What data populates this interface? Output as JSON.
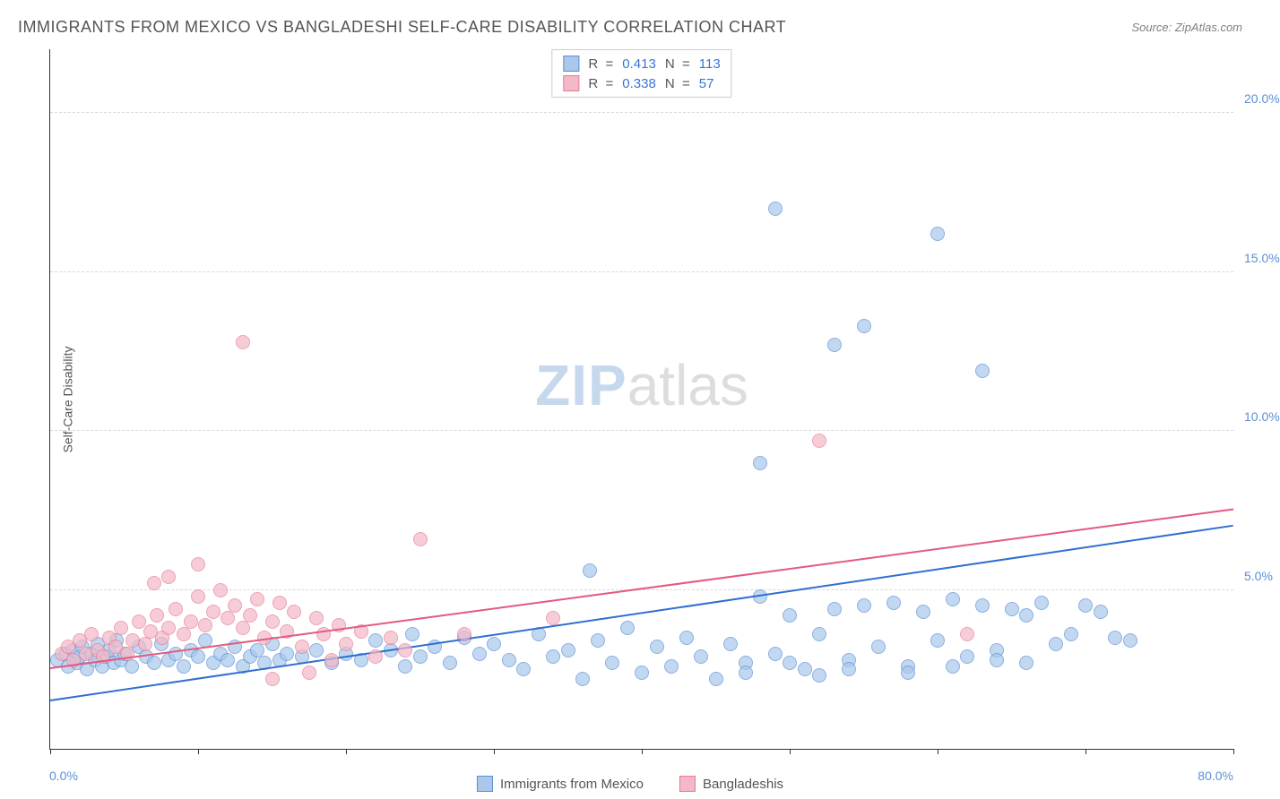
{
  "title": "IMMIGRANTS FROM MEXICO VS BANGLADESHI SELF-CARE DISABILITY CORRELATION CHART",
  "source_label": "Source: ZipAtlas.com",
  "watermark": {
    "part1": "ZIP",
    "part2": "atlas"
  },
  "ylabel": "Self-Care Disability",
  "chart": {
    "type": "scatter",
    "xlim": [
      0,
      80
    ],
    "ylim": [
      0,
      22
    ],
    "background_color": "#ffffff",
    "grid_color": "#d8d8d8",
    "axis_color": "#333333",
    "marker_radius": 8,
    "marker_border_width": 1.2,
    "xticks": [
      0,
      10,
      20,
      30,
      40,
      50,
      60,
      70,
      80
    ],
    "yticks": [
      {
        "value": 5,
        "label": "5.0%"
      },
      {
        "value": 10,
        "label": "10.0%"
      },
      {
        "value": 15,
        "label": "15.0%"
      },
      {
        "value": 20,
        "label": "20.0%"
      }
    ],
    "x_axis_labels": {
      "min": "0.0%",
      "max": "80.0%"
    },
    "y_tick_color": "#5b8fd6",
    "y_tick_fontsize": 14,
    "label_fontsize": 14,
    "label_color": "#555555"
  },
  "series": [
    {
      "name": "Immigrants from Mexico",
      "fill_color": "#a9c8ec",
      "border_color": "#5b8fd6",
      "fill_opacity": 0.7,
      "trend": {
        "x1": 0,
        "y1": 1.5,
        "x2": 80,
        "y2": 7.0,
        "color": "#2f6fd0",
        "width": 2
      },
      "stats": {
        "R": "0.413",
        "N": "113"
      },
      "points": [
        [
          0.5,
          2.8
        ],
        [
          1,
          3.0
        ],
        [
          1.2,
          2.6
        ],
        [
          1.5,
          3.1
        ],
        [
          1.8,
          2.7
        ],
        [
          2,
          2.9
        ],
        [
          2.2,
          3.2
        ],
        [
          2.5,
          2.5
        ],
        [
          2.8,
          3.0
        ],
        [
          3,
          2.8
        ],
        [
          3.2,
          3.3
        ],
        [
          3.5,
          2.6
        ],
        [
          3.8,
          2.9
        ],
        [
          4,
          3.1
        ],
        [
          4.3,
          2.7
        ],
        [
          4.5,
          3.4
        ],
        [
          4.8,
          2.8
        ],
        [
          5,
          3.0
        ],
        [
          5.5,
          2.6
        ],
        [
          6,
          3.2
        ],
        [
          6.5,
          2.9
        ],
        [
          7,
          2.7
        ],
        [
          7.5,
          3.3
        ],
        [
          8,
          2.8
        ],
        [
          8.5,
          3.0
        ],
        [
          9,
          2.6
        ],
        [
          9.5,
          3.1
        ],
        [
          10,
          2.9
        ],
        [
          10.5,
          3.4
        ],
        [
          11,
          2.7
        ],
        [
          11.5,
          3.0
        ],
        [
          12,
          2.8
        ],
        [
          12.5,
          3.2
        ],
        [
          13,
          2.6
        ],
        [
          13.5,
          2.9
        ],
        [
          14,
          3.1
        ],
        [
          14.5,
          2.7
        ],
        [
          15,
          3.3
        ],
        [
          15.5,
          2.8
        ],
        [
          16,
          3.0
        ],
        [
          17,
          2.9
        ],
        [
          18,
          3.1
        ],
        [
          19,
          2.7
        ],
        [
          20,
          3.0
        ],
        [
          21,
          2.8
        ],
        [
          22,
          3.4
        ],
        [
          23,
          3.1
        ],
        [
          24,
          2.6
        ],
        [
          24.5,
          3.6
        ],
        [
          25,
          2.9
        ],
        [
          26,
          3.2
        ],
        [
          27,
          2.7
        ],
        [
          28,
          3.5
        ],
        [
          29,
          3.0
        ],
        [
          30,
          3.3
        ],
        [
          31,
          2.8
        ],
        [
          32,
          2.5
        ],
        [
          33,
          3.6
        ],
        [
          34,
          2.9
        ],
        [
          35,
          3.1
        ],
        [
          36,
          2.2
        ],
        [
          36.5,
          5.6
        ],
        [
          37,
          3.4
        ],
        [
          38,
          2.7
        ],
        [
          39,
          3.8
        ],
        [
          40,
          2.4
        ],
        [
          41,
          3.2
        ],
        [
          42,
          2.6
        ],
        [
          43,
          3.5
        ],
        [
          44,
          2.9
        ],
        [
          45,
          2.2
        ],
        [
          46,
          3.3
        ],
        [
          47,
          2.7
        ],
        [
          48,
          4.8
        ],
        [
          49,
          3.0
        ],
        [
          50,
          4.2
        ],
        [
          51,
          2.5
        ],
        [
          52,
          3.6
        ],
        [
          53,
          4.4
        ],
        [
          54,
          2.8
        ],
        [
          55,
          4.5
        ],
        [
          56,
          3.2
        ],
        [
          57,
          4.6
        ],
        [
          58,
          2.6
        ],
        [
          59,
          4.3
        ],
        [
          60,
          3.4
        ],
        [
          61,
          4.7
        ],
        [
          62,
          2.9
        ],
        [
          63,
          4.5
        ],
        [
          64,
          3.1
        ],
        [
          65,
          4.4
        ],
        [
          66,
          2.7
        ],
        [
          67,
          4.6
        ],
        [
          68,
          3.3
        ],
        [
          70,
          4.5
        ],
        [
          72,
          3.5
        ],
        [
          49,
          17.0
        ],
        [
          53,
          12.7
        ],
        [
          55,
          13.3
        ],
        [
          60,
          16.2
        ],
        [
          63,
          11.9
        ],
        [
          48,
          9.0
        ],
        [
          58,
          2.4
        ],
        [
          61,
          2.6
        ],
        [
          64,
          2.8
        ],
        [
          66,
          4.2
        ],
        [
          69,
          3.6
        ],
        [
          71,
          4.3
        ],
        [
          73,
          3.4
        ],
        [
          52,
          2.3
        ],
        [
          54,
          2.5
        ],
        [
          50,
          2.7
        ],
        [
          47,
          2.4
        ]
      ]
    },
    {
      "name": "Bangladeshis",
      "fill_color": "#f3b9c7",
      "border_color": "#e77a95",
      "fill_opacity": 0.7,
      "trend": {
        "x1": 0,
        "y1": 2.5,
        "x2": 80,
        "y2": 7.5,
        "color": "#e35a7d",
        "width": 2
      },
      "stats": {
        "R": "0.338",
        "N": "57"
      },
      "points": [
        [
          0.8,
          3.0
        ],
        [
          1.2,
          3.2
        ],
        [
          1.6,
          2.8
        ],
        [
          2,
          3.4
        ],
        [
          2.4,
          3.0
        ],
        [
          2.8,
          3.6
        ],
        [
          3.2,
          3.1
        ],
        [
          3.6,
          2.9
        ],
        [
          4,
          3.5
        ],
        [
          4.4,
          3.2
        ],
        [
          4.8,
          3.8
        ],
        [
          5.2,
          3.0
        ],
        [
          5.6,
          3.4
        ],
        [
          6,
          4.0
        ],
        [
          6.4,
          3.3
        ],
        [
          6.8,
          3.7
        ],
        [
          7.2,
          4.2
        ],
        [
          7.6,
          3.5
        ],
        [
          8,
          3.8
        ],
        [
          8.5,
          4.4
        ],
        [
          9,
          3.6
        ],
        [
          9.5,
          4.0
        ],
        [
          10,
          4.8
        ],
        [
          10.5,
          3.9
        ],
        [
          11,
          4.3
        ],
        [
          11.5,
          5.0
        ],
        [
          12,
          4.1
        ],
        [
          12.5,
          4.5
        ],
        [
          13,
          3.8
        ],
        [
          13.5,
          4.2
        ],
        [
          14,
          4.7
        ],
        [
          14.5,
          3.5
        ],
        [
          15,
          4.0
        ],
        [
          15.5,
          4.6
        ],
        [
          16,
          3.7
        ],
        [
          16.5,
          4.3
        ],
        [
          17,
          3.2
        ],
        [
          17.5,
          2.4
        ],
        [
          18,
          4.1
        ],
        [
          18.5,
          3.6
        ],
        [
          19,
          2.8
        ],
        [
          19.5,
          3.9
        ],
        [
          20,
          3.3
        ],
        [
          21,
          3.7
        ],
        [
          22,
          2.9
        ],
        [
          23,
          3.5
        ],
        [
          24,
          3.1
        ],
        [
          7,
          5.2
        ],
        [
          8,
          5.4
        ],
        [
          10,
          5.8
        ],
        [
          13,
          12.8
        ],
        [
          25,
          6.6
        ],
        [
          28,
          3.6
        ],
        [
          34,
          4.1
        ],
        [
          52,
          9.7
        ],
        [
          62,
          3.6
        ],
        [
          15,
          2.2
        ]
      ]
    }
  ],
  "stats_box": {
    "r_label": "R  =",
    "n_label": "N  ="
  },
  "legend": {
    "items": [
      {
        "label": "Immigrants from Mexico",
        "fill": "#a9c8ec",
        "border": "#5b8fd6"
      },
      {
        "label": "Bangladeshis",
        "fill": "#f3b9c7",
        "border": "#e77a95"
      }
    ]
  }
}
